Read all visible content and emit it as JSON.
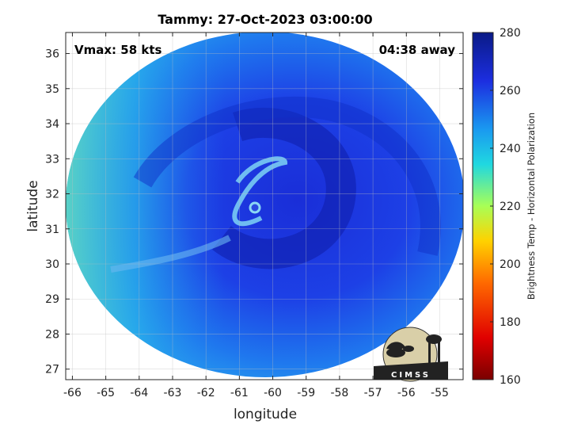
{
  "chart_data": {
    "type": "heatmap",
    "title": "Tammy: 27-Oct-2023 03:00:00",
    "xlabel": "longitude",
    "ylabel": "latitude",
    "xlim": [
      -66.2,
      -54.3
    ],
    "ylim": [
      26.7,
      36.6
    ],
    "x_ticks": [
      -66,
      -65,
      -64,
      -63,
      -62,
      -61,
      -60,
      -59,
      -58,
      -57,
      -56,
      -55
    ],
    "y_ticks": [
      27,
      28,
      29,
      30,
      31,
      32,
      33,
      34,
      35,
      36
    ],
    "grid": true,
    "annotations": {
      "vmax": "Vmax: 58 kts",
      "away": "04:38 away"
    },
    "storm_center": {
      "lon": -60.5,
      "lat": 31.8
    },
    "colorbar": {
      "label": "Brightness Temp - Horizontal Polarization",
      "range": [
        160,
        280
      ],
      "ticks": [
        160,
        180,
        200,
        220,
        240,
        260,
        280
      ],
      "colormap": [
        "#7a0000",
        "#e00000",
        "#ff6a00",
        "#ffd200",
        "#a8ff56",
        "#20d8e0",
        "#1a9af0",
        "#1c2ee0",
        "#0a1a86"
      ]
    },
    "logo": "CIMSS"
  }
}
